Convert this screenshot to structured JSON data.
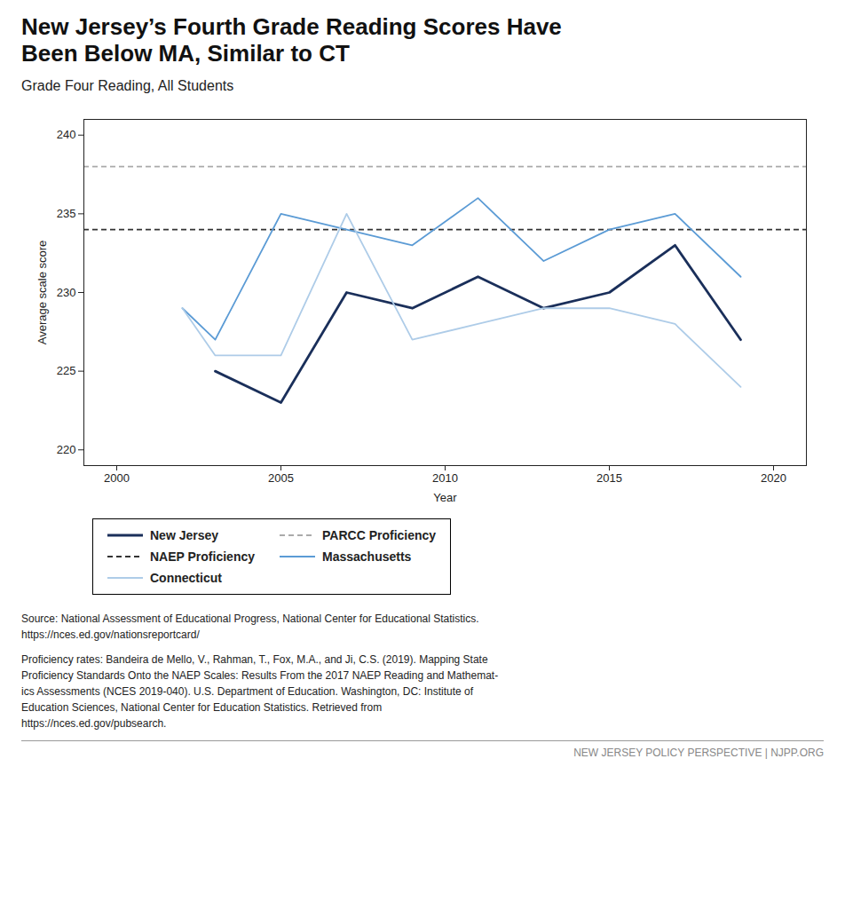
{
  "chart_data": {
    "type": "line",
    "title": "New Jersey’s Fourth Grade Reading Scores Have\nBeen Below MA, Similar to CT",
    "subtitle": "Grade Four Reading, All Students",
    "x_label": "Year",
    "y_label": "Average scale score",
    "xlim": [
      1999,
      2021
    ],
    "xticks": [
      2000,
      2005,
      2010,
      2015,
      2020
    ],
    "ylim": [
      219,
      241
    ],
    "yticks": [
      220,
      225,
      230,
      235,
      240
    ],
    "grid": false,
    "legend": "bottom",
    "x": [
      2002,
      2003,
      2005,
      2007,
      2009,
      2011,
      2013,
      2015,
      2017,
      2019
    ],
    "series": [
      {
        "name": "New Jersey",
        "type": "line",
        "color": "#1a2f5a",
        "line_style": "solid",
        "values": [
          null,
          225,
          223,
          230,
          229,
          231,
          229,
          230,
          233,
          227
        ]
      },
      {
        "name": "PARCC Proficiency",
        "type": "rule",
        "color": "#aaaaaa",
        "line_style": "dashed",
        "value": 238
      },
      {
        "name": "NAEP Proficiency",
        "type": "rule",
        "color": "#333333",
        "line_style": "dashed",
        "value": 234
      },
      {
        "name": "Massachusetts",
        "type": "line",
        "color": "#5b9bd5",
        "line_style": "solid",
        "values": [
          229,
          227,
          235,
          234,
          233,
          236,
          232,
          234,
          235,
          231
        ]
      },
      {
        "name": "Connecticut",
        "type": "line",
        "color": "#aecce8",
        "line_style": "solid",
        "values": [
          229,
          226,
          226,
          235,
          227,
          228,
          229,
          229,
          228,
          224
        ]
      }
    ],
    "notes": [
      "Source: National Assessment of Educational Progress, National Center for Educational Statistics.\nhttps://nces.ed.gov/nationsreportcard/",
      "Proficiency rates: Bandeira de Mello, V., Rahman, T., Fox, M.A., and Ji, C.S. (2019). Mapping State\nProficiency Standards Onto the NAEP Scales: Results From the 2017 NAEP Reading and Mathemat-\nics Assessments (NCES 2019-040). U.S. Department of Education. Washington, DC: Institute of\nEducation Sciences, National Center for Education Statistics. Retrieved from\nhttps://nces.ed.gov/pubsearch."
    ],
    "footer": "NEW JERSEY POLICY PERSPECTIVE | NJPP.ORG"
  }
}
